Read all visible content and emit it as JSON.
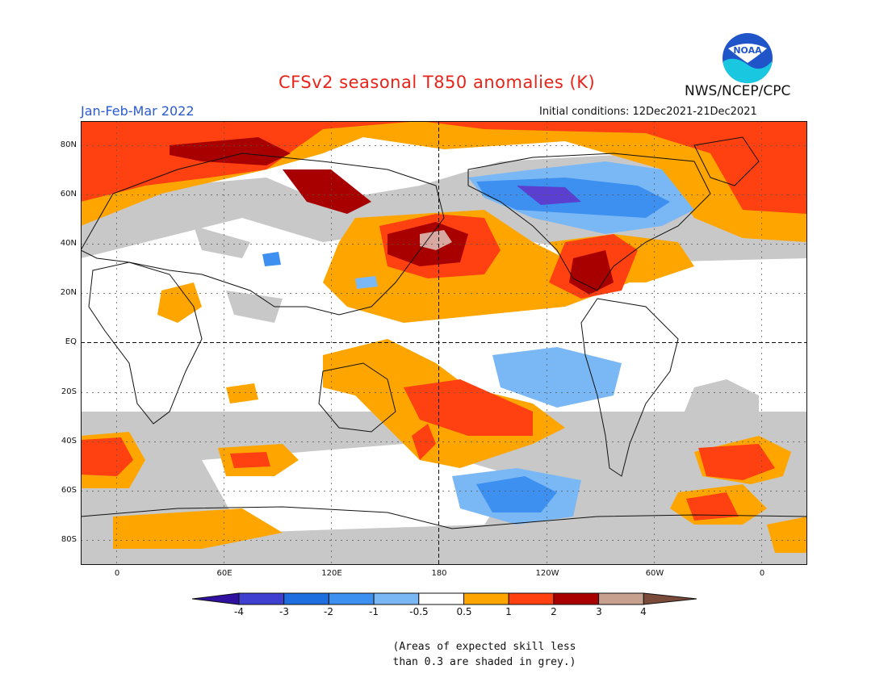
{
  "title": "CFSv2 seasonal T850 anomalies (K)",
  "season": "Jan-Feb-Mar 2022",
  "initial_conditions": "Initial conditions: 12Dec2021-21Dec2021",
  "agency": "NWS/NCEP/CPC",
  "logo_text": "NOAA",
  "note_line1": "(Areas of expected skill less",
  "note_line2": "than 0.3 are shaded in grey.)",
  "lat_labels": [
    "80N",
    "60N",
    "40N",
    "20N",
    "EQ",
    "20S",
    "40S",
    "60S",
    "80S"
  ],
  "lon_labels": [
    "0",
    "60E",
    "120E",
    "180",
    "120W",
    "60W",
    "0"
  ],
  "colorbar": {
    "labels": [
      "-4",
      "-3",
      "-2",
      "-1",
      "-0.5",
      "0.5",
      "1",
      "2",
      "3",
      "4"
    ],
    "colors": [
      "#3010a0",
      "#4040d0",
      "#1e6ee0",
      "#3d90f0",
      "#7ab8f5",
      "#ffffff",
      "#ffa500",
      "#ff4010",
      "#a80000",
      "#c8a090",
      "#7a4a3a"
    ]
  },
  "colors": {
    "grey": "#c8c8c8",
    "orange": "#ffa500",
    "red": "#ff4010",
    "darkred": "#a80000",
    "pink": "#d8a8a0",
    "lightblue": "#7ab8f5",
    "blue": "#3d90f0",
    "purple": "#5a3fd0"
  }
}
